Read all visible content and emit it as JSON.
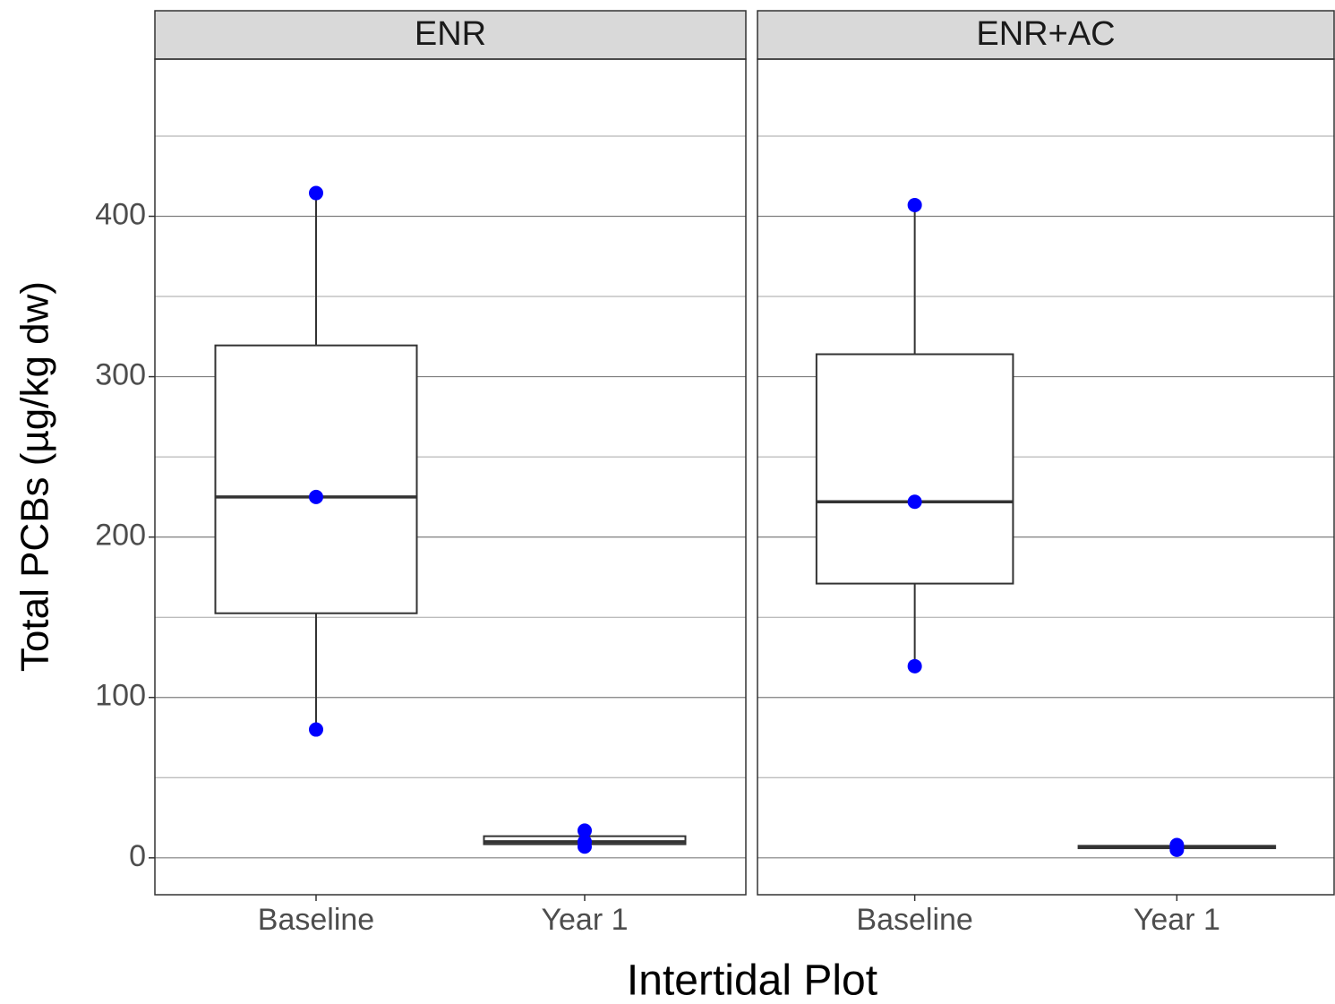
{
  "chart_data": [
    {
      "type": "box",
      "title": "ENR",
      "ylabel": "Total PCBs (µg/kg dw)",
      "xlabel": "Intertidal Plot",
      "categories": [
        "Baseline",
        "Year 1"
      ],
      "boxes": [
        {
          "whisker_low": 80,
          "q1": 152.5,
          "median": 225,
          "q3": 319.5,
          "whisker_high": 414.5
        },
        {
          "whisker_low": 7,
          "q1": 8.5,
          "median": 10,
          "q3": 13.5,
          "whisker_high": 17
        }
      ],
      "points": [
        [
          414.5,
          225,
          80
        ],
        [
          17,
          10,
          7
        ]
      ],
      "point_color": "#0000ff",
      "ylim": [
        -23,
        498
      ],
      "yticks": [
        0,
        100,
        200,
        300,
        400
      ],
      "minor_yticks": [
        50,
        150,
        250,
        350,
        450
      ],
      "grid": true
    },
    {
      "type": "box",
      "title": "ENR+AC",
      "categories": [
        "Baseline",
        "Year 1"
      ],
      "boxes": [
        {
          "whisker_low": 119.5,
          "q1": 171,
          "median": 222,
          "q3": 314,
          "whisker_high": 407
        },
        {
          "whisker_low": 5,
          "q1": 6,
          "median": 7,
          "q3": 7.5,
          "whisker_high": 8
        }
      ],
      "points": [
        [
          407,
          222,
          119.5
        ],
        [
          8,
          7,
          5
        ]
      ],
      "point_color": "#0000ff",
      "ylim": [
        -23,
        498
      ],
      "yticks": [
        0,
        100,
        200,
        300,
        400
      ],
      "minor_yticks": [
        50,
        150,
        250,
        350,
        450
      ],
      "grid": true
    }
  ]
}
